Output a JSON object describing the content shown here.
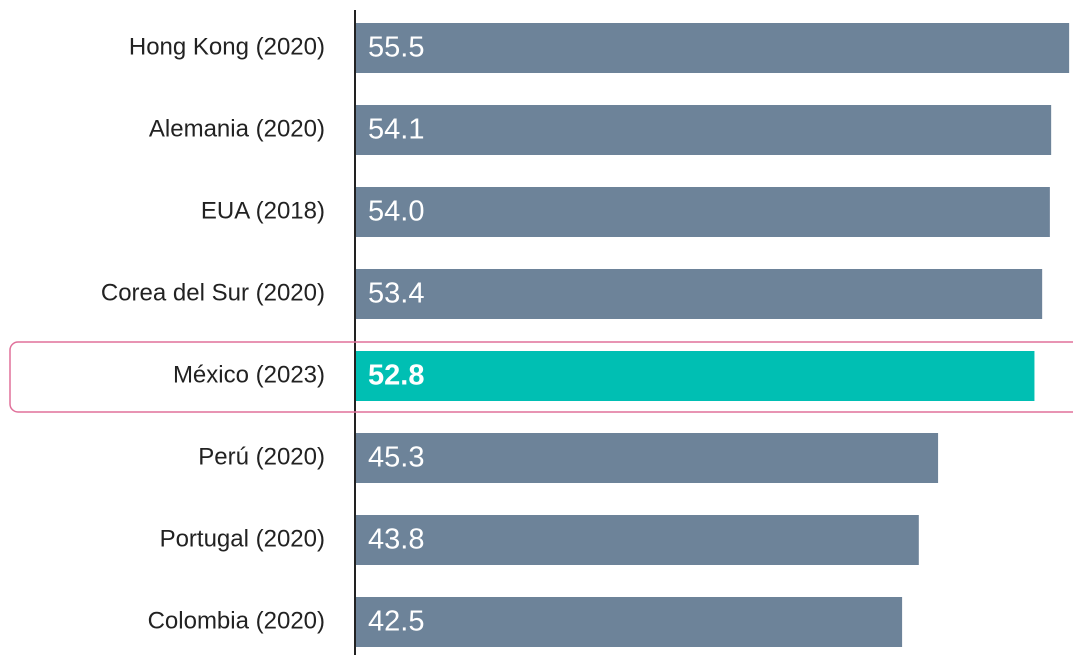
{
  "chart_data": {
    "type": "barh",
    "categories": [
      "Hong Kong (2020)",
      "Alemania (2020)",
      "EUA (2018)",
      "Corea del Sur (2020)",
      "México (2023)",
      "Perú (2020)",
      "Portugal (2020)",
      "Colombia (2020)"
    ],
    "values": [
      55.5,
      54.1,
      54.0,
      53.4,
      52.8,
      45.3,
      43.8,
      42.5
    ],
    "value_labels": [
      "55.5",
      "54.1",
      "54.0",
      "53.4",
      "52.8",
      "45.3",
      "43.8",
      "42.5"
    ],
    "color": "#6d8399",
    "highlight": "México (2023)",
    "highlight_color": "#00bfb3",
    "xlim": [
      0,
      55.8
    ]
  }
}
